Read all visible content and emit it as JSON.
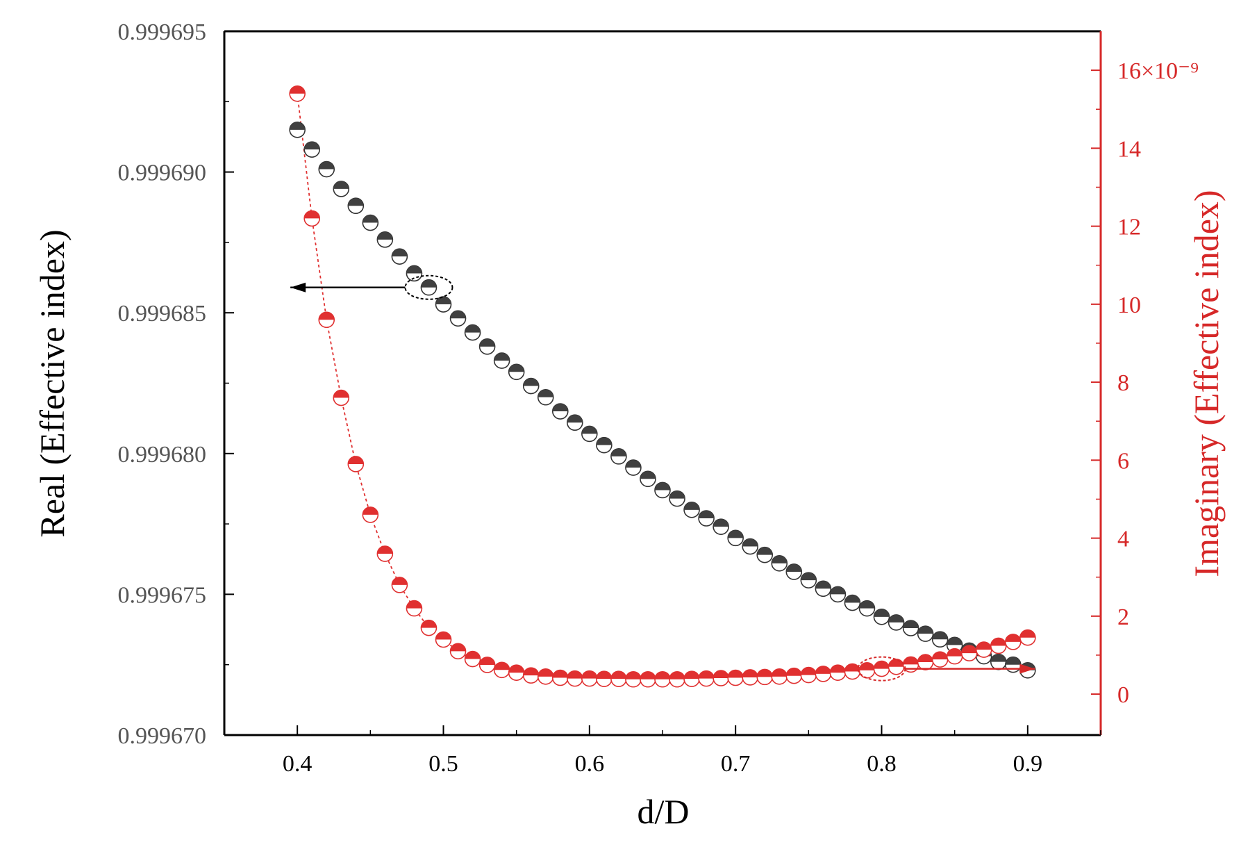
{
  "colors": {
    "left_axis": "#000000",
    "right_axis": "#d62828",
    "real_marker": "#404040",
    "imag_marker": "#e03030"
  },
  "chart_data": {
    "type": "scatter",
    "xlabel": "d/D",
    "ylabel": "Real (Effective index)",
    "y2label": "Imaginary (Effective index)",
    "y2_multiplier_label": "16×10⁻⁹",
    "xlim": [
      0.35,
      0.95
    ],
    "ylim": [
      0.99967,
      0.999695
    ],
    "y2lim": [
      -1.05,
      17.0
    ],
    "xticks": [
      "0.4",
      "0.5",
      "0.6",
      "0.7",
      "0.8",
      "0.9"
    ],
    "yticks": [
      "0.999670",
      "0.999675",
      "0.999680",
      "0.999685",
      "0.999690",
      "0.999695"
    ],
    "y2ticks": [
      "0",
      "2",
      "4",
      "6",
      "8",
      "10",
      "12",
      "14",
      "16×10⁻⁹"
    ],
    "grid": false,
    "legend": "none",
    "series": [
      {
        "axis": "left",
        "x": [
          0.4,
          0.41,
          0.42,
          0.43,
          0.44,
          0.45,
          0.46,
          0.47,
          0.48,
          0.49,
          0.5,
          0.51,
          0.52,
          0.53,
          0.54,
          0.55,
          0.56,
          0.57,
          0.58,
          0.59,
          0.6,
          0.61,
          0.62,
          0.63,
          0.64,
          0.65,
          0.66,
          0.67,
          0.68,
          0.69,
          0.7,
          0.71,
          0.72,
          0.73,
          0.74,
          0.75,
          0.76,
          0.77,
          0.78,
          0.79,
          0.8,
          0.81,
          0.82,
          0.83,
          0.84,
          0.85,
          0.86,
          0.87,
          0.88,
          0.89,
          0.9
        ],
        "values": [
          0.9996915,
          0.9996908,
          0.9996901,
          0.9996894,
          0.9996888,
          0.9996882,
          0.9996876,
          0.999687,
          0.9996864,
          0.9996859,
          0.9996853,
          0.9996848,
          0.9996843,
          0.9996838,
          0.9996833,
          0.9996829,
          0.9996824,
          0.999682,
          0.9996815,
          0.9996811,
          0.9996807,
          0.9996803,
          0.9996799,
          0.9996795,
          0.9996791,
          0.9996787,
          0.9996784,
          0.999678,
          0.9996777,
          0.9996774,
          0.999677,
          0.9996767,
          0.9996764,
          0.9996761,
          0.9996758,
          0.9996755,
          0.9996752,
          0.999675,
          0.9996747,
          0.9996745,
          0.9996742,
          0.999674,
          0.9996738,
          0.9996736,
          0.9996734,
          0.9996732,
          0.999673,
          0.9996728,
          0.9996726,
          0.9996725,
          0.9996723
        ]
      },
      {
        "axis": "right",
        "x": [
          0.4,
          0.41,
          0.42,
          0.43,
          0.44,
          0.45,
          0.46,
          0.47,
          0.48,
          0.49,
          0.5,
          0.51,
          0.52,
          0.53,
          0.54,
          0.55,
          0.56,
          0.57,
          0.58,
          0.59,
          0.6,
          0.61,
          0.62,
          0.63,
          0.64,
          0.65,
          0.66,
          0.67,
          0.68,
          0.69,
          0.7,
          0.71,
          0.72,
          0.73,
          0.74,
          0.75,
          0.76,
          0.77,
          0.78,
          0.79,
          0.8,
          0.81,
          0.82,
          0.83,
          0.84,
          0.85,
          0.86,
          0.87,
          0.88,
          0.89,
          0.9
        ],
        "values": [
          15.4,
          12.2,
          9.6,
          7.6,
          5.9,
          4.6,
          3.6,
          2.8,
          2.2,
          1.7,
          1.4,
          1.1,
          0.9,
          0.75,
          0.62,
          0.55,
          0.48,
          0.45,
          0.42,
          0.4,
          0.4,
          0.39,
          0.39,
          0.38,
          0.38,
          0.38,
          0.38,
          0.39,
          0.4,
          0.41,
          0.42,
          0.43,
          0.44,
          0.45,
          0.47,
          0.49,
          0.52,
          0.55,
          0.58,
          0.61,
          0.65,
          0.7,
          0.76,
          0.82,
          0.89,
          0.97,
          1.05,
          1.14,
          1.24,
          1.34,
          1.45
        ]
      }
    ],
    "annotations": [
      {
        "type": "circle-arrow",
        "series": "left",
        "at_x": 0.49,
        "direction": "left"
      },
      {
        "type": "circle-arrow",
        "series": "right",
        "at_x": 0.8,
        "direction": "right"
      }
    ]
  }
}
